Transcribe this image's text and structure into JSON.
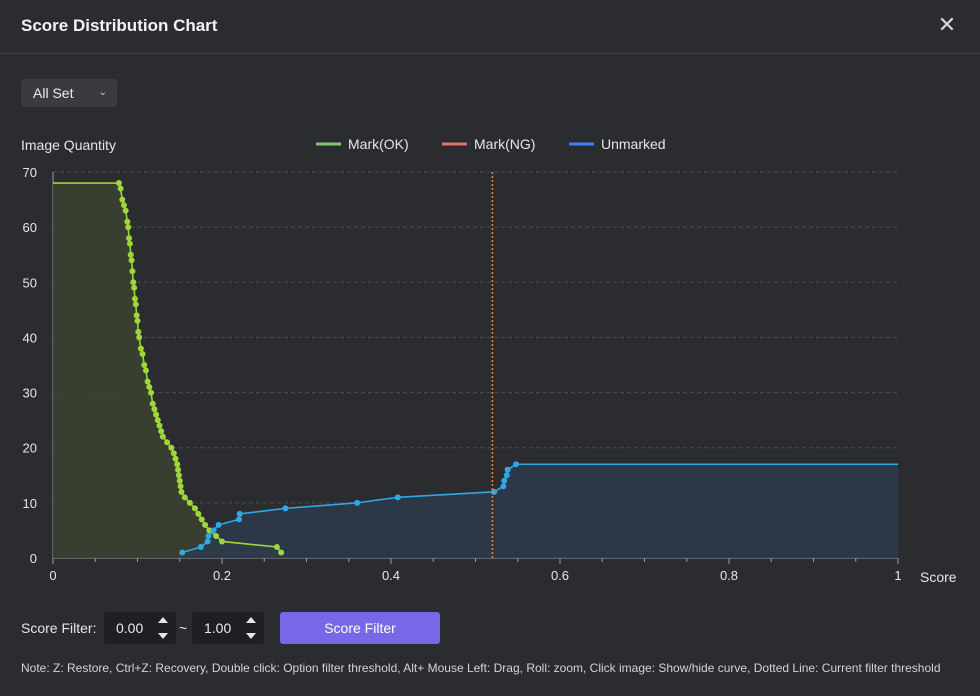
{
  "window": {
    "title": "Score Distribution Chart"
  },
  "set_select": {
    "value": "All Set"
  },
  "chart_data": {
    "type": "line",
    "title": "",
    "ylabel": "Image Quantity",
    "xlabel": "Score",
    "xlim": [
      0,
      1
    ],
    "ylim": [
      0,
      70
    ],
    "x_ticks": [
      "0",
      "0.2",
      "0.4",
      "0.6",
      "0.8",
      "1"
    ],
    "y_ticks": [
      "0",
      "10",
      "20",
      "30",
      "40",
      "50",
      "60",
      "70"
    ],
    "grid": "horizontal-dashed",
    "legend_placement": "top-center",
    "threshold": 0.52,
    "series": [
      {
        "name": "Mark(OK)",
        "color": "#7ec46f",
        "marker_color": "#9fd63a",
        "fill": "#3a4132",
        "points": [
          [
            0,
            68
          ],
          [
            0.078,
            68
          ],
          [
            0.08,
            67
          ],
          [
            0.082,
            65
          ],
          [
            0.084,
            64
          ],
          [
            0.086,
            63
          ],
          [
            0.088,
            61
          ],
          [
            0.089,
            60
          ],
          [
            0.09,
            58
          ],
          [
            0.091,
            57
          ],
          [
            0.092,
            55
          ],
          [
            0.093,
            54
          ],
          [
            0.094,
            52
          ],
          [
            0.095,
            50
          ],
          [
            0.096,
            49
          ],
          [
            0.097,
            47
          ],
          [
            0.098,
            46
          ],
          [
            0.099,
            44
          ],
          [
            0.1,
            43
          ],
          [
            0.101,
            41
          ],
          [
            0.102,
            40
          ],
          [
            0.104,
            38
          ],
          [
            0.106,
            37
          ],
          [
            0.108,
            35
          ],
          [
            0.11,
            34
          ],
          [
            0.112,
            32
          ],
          [
            0.114,
            31
          ],
          [
            0.116,
            30
          ],
          [
            0.118,
            28
          ],
          [
            0.12,
            27
          ],
          [
            0.122,
            26
          ],
          [
            0.124,
            25
          ],
          [
            0.126,
            24
          ],
          [
            0.128,
            23
          ],
          [
            0.13,
            22
          ],
          [
            0.135,
            21
          ],
          [
            0.14,
            20
          ],
          [
            0.143,
            19
          ],
          [
            0.145,
            18
          ],
          [
            0.147,
            17
          ],
          [
            0.148,
            16
          ],
          [
            0.149,
            15
          ],
          [
            0.15,
            14
          ],
          [
            0.151,
            13
          ],
          [
            0.152,
            12
          ],
          [
            0.156,
            11
          ],
          [
            0.162,
            10
          ],
          [
            0.168,
            9
          ],
          [
            0.172,
            8
          ],
          [
            0.176,
            7
          ],
          [
            0.18,
            6
          ],
          [
            0.185,
            5
          ],
          [
            0.193,
            4
          ],
          [
            0.2,
            3
          ],
          [
            0.265,
            2
          ],
          [
            0.27,
            1
          ]
        ]
      },
      {
        "name": "Mark(NG)",
        "color": "#e76d6d",
        "points": []
      },
      {
        "name": "Unmarked",
        "color": "#3b82f6",
        "marker_color": "#2fa8e6",
        "fill": "#2c3a4a",
        "points": [
          [
            0.153,
            1
          ],
          [
            0.175,
            2
          ],
          [
            0.183,
            3
          ],
          [
            0.184,
            4
          ],
          [
            0.19,
            5
          ],
          [
            0.196,
            6
          ],
          [
            0.22,
            7
          ],
          [
            0.221,
            8
          ],
          [
            0.275,
            9
          ],
          [
            0.36,
            10
          ],
          [
            0.408,
            11
          ],
          [
            0.522,
            12
          ],
          [
            0.533,
            13
          ],
          [
            0.534,
            14
          ],
          [
            0.537,
            15
          ],
          [
            0.538,
            16
          ],
          [
            0.548,
            17
          ],
          [
            1,
            17
          ]
        ]
      }
    ]
  },
  "filter": {
    "label": "Score Filter:",
    "min": "0.00",
    "separator": "~",
    "max": "1.00",
    "button_label": "Score Filter"
  },
  "note": "Note: Z: Restore, Ctrl+Z: Recovery, Double click: Option filter threshold, Alt+ Mouse Left: Drag, Roll: zoom, Click image: Show/hide curve, Dotted Line: Current filter threshold"
}
